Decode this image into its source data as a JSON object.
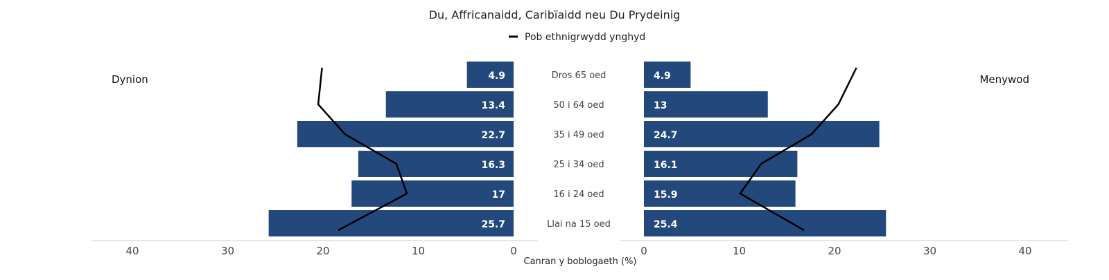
{
  "chart_data": {
    "type": "bar",
    "subtype": "population-pyramid",
    "title": "Du, Affricanaidd, Caribïaidd neu Du Prydeinig",
    "xlabel": "Canran y boblogaeth (%)",
    "left_panel_label": "Dynion",
    "right_panel_label": "Menywod",
    "categories": [
      "Dros 65 oed",
      "50 i 64 oed",
      "35 i 49 oed",
      "25 i 34 oed",
      "16 i 24 oed",
      "Llai na 15 oed"
    ],
    "series": [
      {
        "name": "Dynion",
        "values": [
          4.9,
          13.4,
          22.7,
          16.3,
          17,
          25.7
        ],
        "labels": [
          "4.9",
          "13.4",
          "22.7",
          "16.3",
          "17",
          "25.7"
        ]
      },
      {
        "name": "Menywod",
        "values": [
          4.9,
          13,
          24.7,
          16.1,
          15.9,
          25.4
        ],
        "labels": [
          "4.9",
          "13",
          "24.7",
          "16.1",
          "15.9",
          "25.4"
        ]
      }
    ],
    "reference_line": {
      "name": "Pob ethnigrwydd ynghyd",
      "male": [
        20.1,
        20.5,
        17.7,
        12.3,
        11.2,
        18.4
      ],
      "female": [
        22.3,
        20.4,
        17.6,
        12.3,
        10.1,
        16.8
      ]
    },
    "xlim": [
      0,
      40
    ],
    "ticks": [
      0,
      10,
      20,
      30,
      40
    ],
    "tick_labels": [
      "0",
      "10",
      "20",
      "30",
      "40"
    ],
    "legend": "top-center",
    "grid": false,
    "colors": {
      "bar": "#23487b",
      "line": "#000000",
      "axis": "#cccccc"
    }
  }
}
